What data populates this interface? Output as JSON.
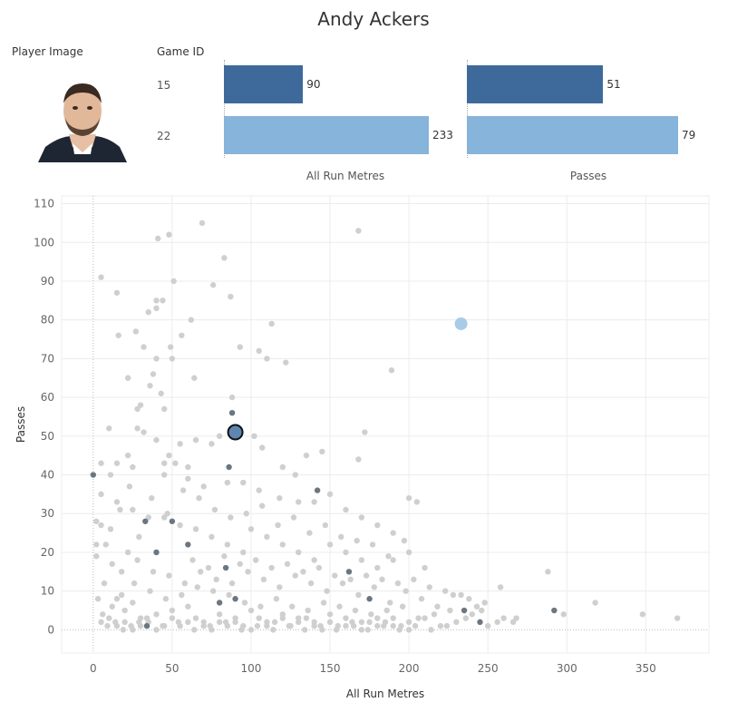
{
  "title": "Andy Ackers",
  "header": {
    "player_image": "Player Image",
    "game_id": "Game ID"
  },
  "colors": {
    "dark_blue": "#3e6a9b",
    "light_blue": "#86b4da",
    "grey_point": "#cfcfcf",
    "dark_point": "#6b7680"
  },
  "bar_table": {
    "games": [
      {
        "game_id": "15",
        "run_metres": 90,
        "passes": 51,
        "color": "#3e6a9b"
      },
      {
        "game_id": "22",
        "run_metres": 233,
        "passes": 79,
        "color": "#86b4da"
      }
    ],
    "run_metres_label": "All Run Metres",
    "passes_label": "Passes",
    "run_metres_max": 233,
    "passes_max": 79
  },
  "chart_data": {
    "type": "scatter",
    "xlabel": "All Run Metres",
    "ylabel": "Passes",
    "xlim": [
      -20,
      390
    ],
    "ylim": [
      -6,
      112
    ],
    "xticks": [
      "0",
      "50",
      "100",
      "150",
      "200",
      "250",
      "300",
      "350"
    ],
    "yticks": [
      "0",
      "10",
      "20",
      "30",
      "40",
      "50",
      "60",
      "70",
      "80",
      "90",
      "100",
      "110"
    ],
    "grid": true,
    "highlight_points": [
      {
        "x": 90,
        "y": 51,
        "game_id": "15"
      },
      {
        "x": 233,
        "y": 79,
        "game_id": "22"
      }
    ],
    "dark_points": [
      [
        0,
        40
      ],
      [
        88,
        56
      ],
      [
        86,
        42
      ],
      [
        84,
        16
      ],
      [
        60,
        22
      ],
      [
        50,
        28
      ],
      [
        40,
        20
      ],
      [
        33,
        28
      ],
      [
        80,
        7
      ],
      [
        90,
        8
      ],
      [
        142,
        36
      ],
      [
        162,
        15
      ],
      [
        175,
        8
      ],
      [
        235,
        5
      ],
      [
        292,
        5
      ],
      [
        34,
        1
      ],
      [
        245,
        2
      ]
    ],
    "grey_points": [
      [
        69,
        105
      ],
      [
        168,
        103
      ],
      [
        48,
        102
      ],
      [
        41,
        101
      ],
      [
        83,
        96
      ],
      [
        5,
        91
      ],
      [
        51,
        90
      ],
      [
        76,
        89
      ],
      [
        15,
        87
      ],
      [
        87,
        86
      ],
      [
        40,
        85
      ],
      [
        44,
        85
      ],
      [
        40,
        83
      ],
      [
        35,
        82
      ],
      [
        62,
        80
      ],
      [
        113,
        79
      ],
      [
        16,
        76
      ],
      [
        27,
        77
      ],
      [
        56,
        76
      ],
      [
        49,
        73
      ],
      [
        93,
        73
      ],
      [
        32,
        73
      ],
      [
        110,
        70
      ],
      [
        40,
        70
      ],
      [
        50,
        70
      ],
      [
        105,
        72
      ],
      [
        122,
        69
      ],
      [
        22,
        65
      ],
      [
        64,
        65
      ],
      [
        38,
        66
      ],
      [
        36,
        63
      ],
      [
        43,
        61
      ],
      [
        189,
        67
      ],
      [
        30,
        58
      ],
      [
        45,
        57
      ],
      [
        88,
        60
      ],
      [
        28,
        57
      ],
      [
        28,
        52
      ],
      [
        10,
        52
      ],
      [
        32,
        51
      ],
      [
        40,
        49
      ],
      [
        55,
        48
      ],
      [
        102,
        50
      ],
      [
        65,
        49
      ],
      [
        75,
        48
      ],
      [
        80,
        50
      ],
      [
        107,
        47
      ],
      [
        172,
        51
      ],
      [
        48,
        45
      ],
      [
        45,
        43
      ],
      [
        15,
        43
      ],
      [
        5,
        43
      ],
      [
        22,
        45
      ],
      [
        52,
        43
      ],
      [
        60,
        42
      ],
      [
        135,
        45
      ],
      [
        168,
        44
      ],
      [
        120,
        42
      ],
      [
        128,
        40
      ],
      [
        145,
        46
      ],
      [
        11,
        40
      ],
      [
        25,
        42
      ],
      [
        45,
        40
      ],
      [
        60,
        39
      ],
      [
        70,
        37
      ],
      [
        85,
        38
      ],
      [
        95,
        38
      ],
      [
        105,
        36
      ],
      [
        118,
        34
      ],
      [
        130,
        33
      ],
      [
        140,
        33
      ],
      [
        150,
        35
      ],
      [
        160,
        31
      ],
      [
        170,
        29
      ],
      [
        180,
        27
      ],
      [
        190,
        25
      ],
      [
        200,
        34
      ],
      [
        205,
        33
      ],
      [
        5,
        35
      ],
      [
        15,
        33
      ],
      [
        25,
        31
      ],
      [
        35,
        29
      ],
      [
        45,
        29
      ],
      [
        55,
        27
      ],
      [
        65,
        26
      ],
      [
        75,
        24
      ],
      [
        85,
        22
      ],
      [
        95,
        20
      ],
      [
        100,
        26
      ],
      [
        110,
        24
      ],
      [
        120,
        22
      ],
      [
        130,
        20
      ],
      [
        140,
        18
      ],
      [
        150,
        22
      ],
      [
        160,
        20
      ],
      [
        170,
        18
      ],
      [
        180,
        16
      ],
      [
        190,
        18
      ],
      [
        200,
        20
      ],
      [
        210,
        16
      ],
      [
        2,
        28
      ],
      [
        5,
        27
      ],
      [
        2,
        22
      ],
      [
        2,
        19
      ],
      [
        8,
        22
      ],
      [
        12,
        17
      ],
      [
        18,
        15
      ],
      [
        22,
        20
      ],
      [
        28,
        18
      ],
      [
        38,
        15
      ],
      [
        48,
        14
      ],
      [
        58,
        12
      ],
      [
        68,
        15
      ],
      [
        78,
        13
      ],
      [
        88,
        12
      ],
      [
        98,
        15
      ],
      [
        108,
        13
      ],
      [
        118,
        11
      ],
      [
        128,
        14
      ],
      [
        138,
        12
      ],
      [
        148,
        10
      ],
      [
        158,
        12
      ],
      [
        168,
        9
      ],
      [
        178,
        11
      ],
      [
        188,
        7
      ],
      [
        198,
        10
      ],
      [
        208,
        8
      ],
      [
        218,
        6
      ],
      [
        228,
        9
      ],
      [
        238,
        8
      ],
      [
        248,
        7
      ],
      [
        258,
        11
      ],
      [
        268,
        3
      ],
      [
        288,
        15
      ],
      [
        298,
        4
      ],
      [
        318,
        7
      ],
      [
        348,
        4
      ],
      [
        370,
        3
      ],
      [
        15,
        8
      ],
      [
        20,
        5
      ],
      [
        25,
        7
      ],
      [
        30,
        3
      ],
      [
        40,
        4
      ],
      [
        50,
        5
      ],
      [
        60,
        6
      ],
      [
        70,
        2
      ],
      [
        80,
        4
      ],
      [
        90,
        3
      ],
      [
        100,
        5
      ],
      [
        110,
        2
      ],
      [
        120,
        4
      ],
      [
        130,
        3
      ],
      [
        140,
        2
      ],
      [
        150,
        4
      ],
      [
        160,
        1
      ],
      [
        170,
        2
      ],
      [
        180,
        3
      ],
      [
        190,
        1
      ],
      [
        200,
        2
      ],
      [
        210,
        3
      ],
      [
        220,
        1
      ],
      [
        230,
        2
      ],
      [
        240,
        4
      ],
      [
        250,
        1
      ],
      [
        260,
        3
      ],
      [
        9,
        1
      ],
      [
        14,
        2
      ],
      [
        19,
        0
      ],
      [
        24,
        1
      ],
      [
        29,
        2
      ],
      [
        34,
        3
      ],
      [
        44,
        1
      ],
      [
        54,
        2
      ],
      [
        64,
        0
      ],
      [
        74,
        1
      ],
      [
        84,
        2
      ],
      [
        94,
        0
      ],
      [
        104,
        1
      ],
      [
        114,
        0
      ],
      [
        124,
        1
      ],
      [
        134,
        0
      ],
      [
        144,
        1
      ],
      [
        154,
        0
      ],
      [
        164,
        2
      ],
      [
        174,
        0
      ],
      [
        184,
        1
      ],
      [
        194,
        0
      ],
      [
        204,
        1
      ],
      [
        214,
        0
      ],
      [
        224,
        1
      ],
      [
        6,
        4
      ],
      [
        12,
        6
      ],
      [
        18,
        9
      ],
      [
        26,
        12
      ],
      [
        36,
        10
      ],
      [
        46,
        8
      ],
      [
        56,
        9
      ],
      [
        66,
        11
      ],
      [
        76,
        10
      ],
      [
        86,
        9
      ],
      [
        96,
        7
      ],
      [
        106,
        6
      ],
      [
        116,
        8
      ],
      [
        126,
        6
      ],
      [
        136,
        5
      ],
      [
        146,
        7
      ],
      [
        156,
        6
      ],
      [
        166,
        5
      ],
      [
        176,
        4
      ],
      [
        186,
        5
      ],
      [
        196,
        6
      ],
      [
        206,
        3
      ],
      [
        216,
        4
      ],
      [
        226,
        5
      ],
      [
        236,
        3
      ],
      [
        246,
        5
      ],
      [
        256,
        2
      ],
      [
        266,
        2
      ],
      [
        3,
        8
      ],
      [
        7,
        12
      ],
      [
        11,
        26
      ],
      [
        17,
        31
      ],
      [
        23,
        37
      ],
      [
        29,
        24
      ],
      [
        37,
        34
      ],
      [
        47,
        30
      ],
      [
        57,
        36
      ],
      [
        67,
        34
      ],
      [
        77,
        31
      ],
      [
        87,
        29
      ],
      [
        97,
        30
      ],
      [
        107,
        32
      ],
      [
        117,
        27
      ],
      [
        127,
        29
      ],
      [
        137,
        25
      ],
      [
        147,
        27
      ],
      [
        157,
        24
      ],
      [
        167,
        23
      ],
      [
        177,
        22
      ],
      [
        187,
        19
      ],
      [
        197,
        23
      ],
      [
        63,
        18
      ],
      [
        73,
        16
      ],
      [
        83,
        19
      ],
      [
        93,
        17
      ],
      [
        103,
        18
      ],
      [
        113,
        16
      ],
      [
        123,
        17
      ],
      [
        133,
        15
      ],
      [
        143,
        16
      ],
      [
        153,
        14
      ],
      [
        163,
        13
      ],
      [
        173,
        14
      ],
      [
        183,
        13
      ],
      [
        193,
        12
      ],
      [
        203,
        13
      ],
      [
        213,
        11
      ],
      [
        223,
        10
      ],
      [
        233,
        9
      ],
      [
        243,
        6
      ],
      [
        5,
        2
      ],
      [
        10,
        3
      ],
      [
        15,
        1
      ],
      [
        20,
        2
      ],
      [
        25,
        0
      ],
      [
        30,
        1
      ],
      [
        35,
        2
      ],
      [
        40,
        0
      ],
      [
        45,
        1
      ],
      [
        50,
        3
      ],
      [
        55,
        1
      ],
      [
        60,
        2
      ],
      [
        65,
        3
      ],
      [
        70,
        1
      ],
      [
        75,
        0
      ],
      [
        80,
        2
      ],
      [
        85,
        1
      ],
      [
        90,
        2
      ],
      [
        95,
        1
      ],
      [
        100,
        0
      ],
      [
        105,
        3
      ],
      [
        110,
        1
      ],
      [
        115,
        2
      ],
      [
        120,
        3
      ],
      [
        125,
        1
      ],
      [
        130,
        2
      ],
      [
        135,
        3
      ],
      [
        140,
        1
      ],
      [
        145,
        0
      ],
      [
        150,
        2
      ],
      [
        155,
        1
      ],
      [
        160,
        3
      ],
      [
        165,
        1
      ],
      [
        170,
        0
      ],
      [
        175,
        2
      ],
      [
        180,
        1
      ],
      [
        185,
        2
      ],
      [
        190,
        3
      ],
      [
        195,
        1
      ],
      [
        200,
        0
      ]
    ]
  }
}
